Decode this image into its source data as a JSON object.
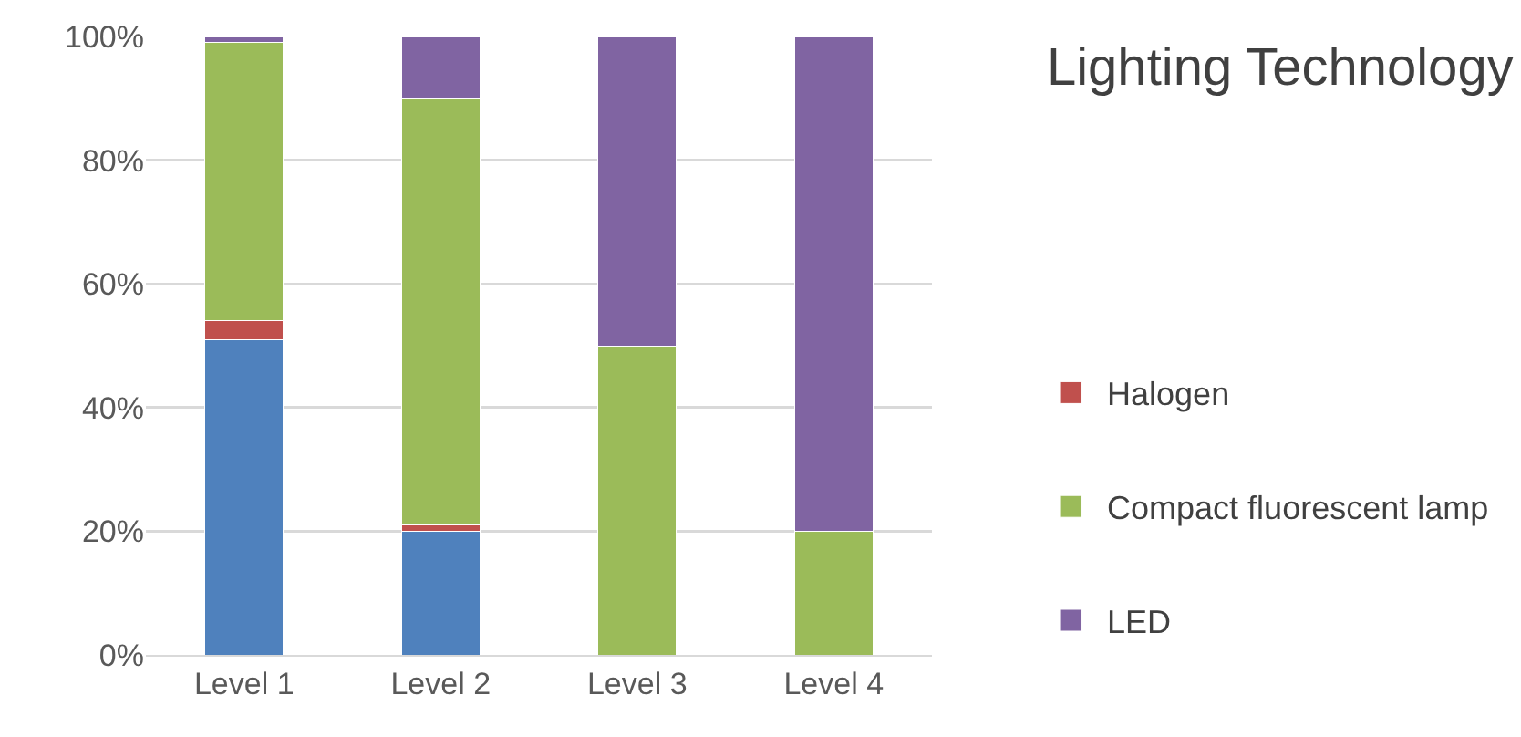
{
  "chart_data": {
    "type": "bar",
    "stacked": true,
    "title": "Lighting Technology",
    "categories": [
      "Level 1",
      "Level 2",
      "Level 3",
      "Level 4"
    ],
    "series": [
      {
        "color": "#4f81bd",
        "values": [
          51,
          20,
          0,
          0
        ]
      },
      {
        "name": "Halogen",
        "color": "#c0504d",
        "values": [
          3,
          1,
          0,
          0
        ]
      },
      {
        "name": "Compact fluorescent lamp",
        "color": "#9bbb59",
        "values": [
          45,
          69,
          50,
          20
        ]
      },
      {
        "name": "LED",
        "color": "#8064a2",
        "values": [
          1,
          10,
          50,
          80
        ]
      }
    ],
    "ylim": [
      0,
      100
    ],
    "yticks": [
      {
        "value": 0,
        "label": "0%"
      },
      {
        "value": 20,
        "label": "20%"
      },
      {
        "value": 40,
        "label": "40%"
      },
      {
        "value": 60,
        "label": "60%"
      },
      {
        "value": 80,
        "label": "80%"
      },
      {
        "value": 100,
        "label": "100%"
      }
    ],
    "grid": "y",
    "legend": "right"
  }
}
